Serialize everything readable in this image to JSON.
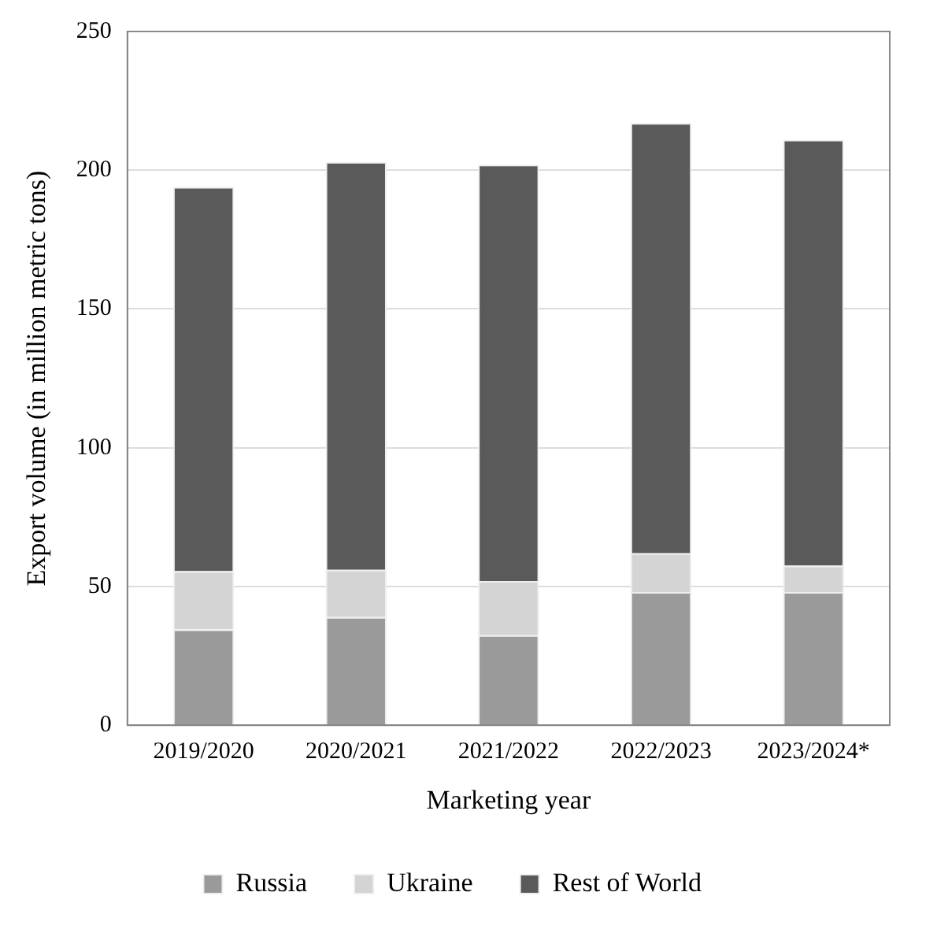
{
  "chart_data": {
    "type": "bar",
    "stacked": true,
    "xlabel": "Marketing year",
    "ylabel": "Export volume (in million metric tons)",
    "categories": [
      "2019/2020",
      "2020/2021",
      "2021/2022",
      "2022/2023",
      "2023/2024*"
    ],
    "series": [
      {
        "name": "Russia",
        "color": "#9a9a9a",
        "values": [
          34.5,
          39,
          32.5,
          48,
          48
        ]
      },
      {
        "name": "Ukraine",
        "color": "#d4d4d4",
        "values": [
          21,
          17,
          19.5,
          14,
          9.5
        ]
      },
      {
        "name": "Rest of World",
        "color": "#5a5a5a",
        "values": [
          138.5,
          147,
          150,
          155,
          153.5
        ]
      }
    ],
    "ylim": [
      0,
      250
    ],
    "yticks": [
      0,
      50,
      100,
      150,
      200,
      250
    ],
    "grid": "y",
    "legend": "bottom"
  }
}
